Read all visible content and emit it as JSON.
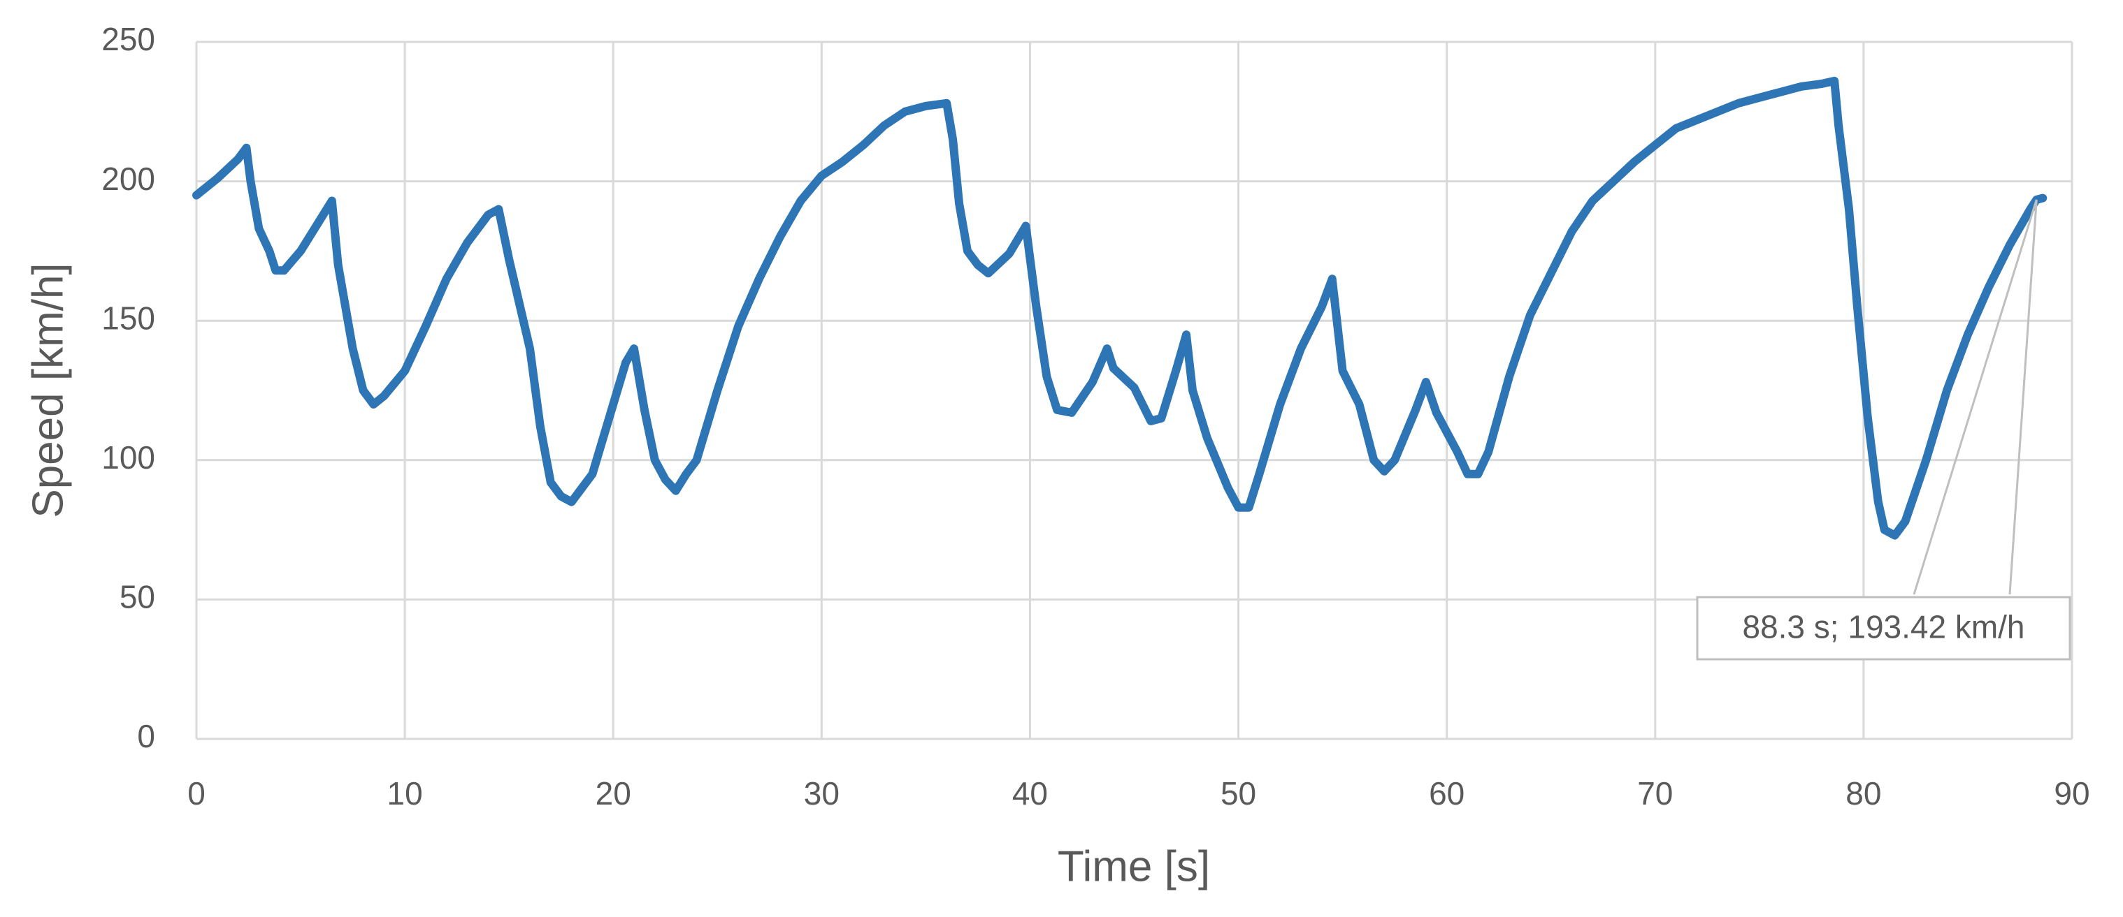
{
  "chart_data": {
    "type": "line",
    "x_label": "Time [s]",
    "y_label": "Speed [km/h]",
    "x": [
      0,
      1,
      2,
      2.4,
      2.6,
      3,
      3.5,
      3.8,
      4.2,
      5,
      6,
      6.5,
      6.8,
      7.5,
      8,
      8.5,
      9,
      10,
      11,
      12,
      13,
      14,
      14.5,
      15,
      16,
      16.5,
      17,
      17.5,
      18,
      18.5,
      19,
      20,
      20.6,
      21,
      21.5,
      22,
      22.5,
      23,
      23.5,
      24,
      25,
      26,
      27,
      28,
      29,
      30,
      31,
      32,
      33,
      34,
      35,
      36,
      36.3,
      36.6,
      37,
      37.5,
      38,
      39,
      39.8,
      40.3,
      40.8,
      41.3,
      42,
      43,
      43.7,
      44,
      45,
      45.8,
      46.3,
      47,
      47.5,
      47.8,
      48.5,
      49.5,
      50,
      50.5,
      51,
      52,
      53,
      54,
      54.5,
      55,
      55.8,
      56.5,
      57,
      57.5,
      58.5,
      59,
      59.5,
      60.5,
      61,
      61.5,
      62,
      63,
      64,
      65,
      66,
      67,
      68,
      69,
      70,
      71,
      72,
      73,
      74,
      75,
      76,
      77,
      78,
      78.6,
      78.8,
      79.3,
      79.7,
      80.2,
      80.7,
      81,
      81.5,
      82,
      83,
      84,
      85,
      86,
      87,
      88,
      88.3,
      88.6
    ],
    "series": [
      {
        "color": "#2e75b6",
        "values": [
          195,
          201,
          208,
          212,
          200,
          183,
          175,
          168,
          168,
          175,
          187,
          193,
          170,
          140,
          125,
          120,
          123,
          132,
          148,
          165,
          178,
          188,
          190,
          172,
          140,
          112,
          92,
          87,
          85,
          90,
          95,
          120,
          135,
          140,
          118,
          100,
          93,
          89,
          95,
          100,
          125,
          148,
          165,
          180,
          193,
          202,
          207,
          213,
          220,
          225,
          227,
          228,
          215,
          192,
          175,
          170,
          167,
          174,
          184,
          155,
          130,
          118,
          117,
          128,
          140,
          133,
          126,
          114,
          115,
          132,
          145,
          125,
          108,
          90,
          83,
          83,
          95,
          120,
          140,
          155,
          165,
          132,
          120,
          100,
          96,
          100,
          118,
          128,
          117,
          103,
          95,
          95,
          103,
          130,
          152,
          167,
          182,
          193,
          200,
          207,
          213,
          219,
          222,
          225,
          228,
          230,
          232,
          234,
          235,
          236,
          220,
          190,
          155,
          115,
          85,
          75,
          73,
          78,
          100,
          125,
          145,
          162,
          177,
          190,
          193.42,
          194
        ]
      }
    ],
    "annotation": {
      "text": "88.3 s; 193.42 km/h",
      "x": 88.3,
      "y": 193.42
    },
    "xlim": [
      0,
      90
    ],
    "ylim": [
      0,
      250
    ],
    "xticks": [
      0,
      10,
      20,
      30,
      40,
      50,
      60,
      70,
      80,
      90
    ],
    "yticks": [
      0,
      50,
      100,
      150,
      200,
      250
    ],
    "grid": true
  }
}
